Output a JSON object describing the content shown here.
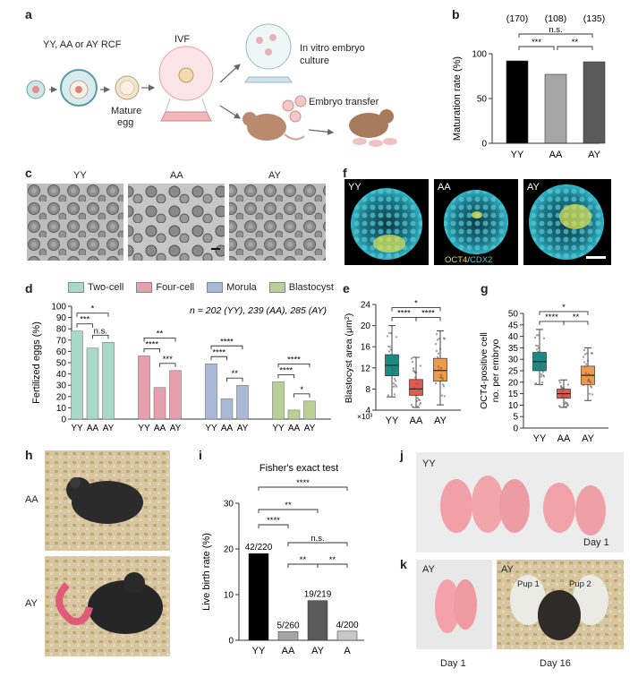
{
  "panels": {
    "a": "a",
    "b": "b",
    "c": "c",
    "d": "d",
    "e": "e",
    "f": "f",
    "g": "g",
    "h": "h",
    "i": "i",
    "j": "j",
    "k": "k"
  },
  "schematic": {
    "rcf": "YY, AA or AY RCF",
    "ivf": "IVF",
    "mature_egg_1": "Mature",
    "mature_egg_2": "egg",
    "in_vitro_1": "In vitro embryo",
    "in_vitro_2": "culture",
    "embryo_transfer": "Embryo transfer"
  },
  "micro_c": {
    "labels": [
      "YY",
      "AA",
      "AY"
    ]
  },
  "fluor_f": {
    "labels": [
      "YY",
      "AA",
      "AY"
    ],
    "stain1": "OCT4",
    "slash": "/",
    "stain2": "CDX2"
  },
  "mice_h": {
    "labels": [
      "AA",
      "AY"
    ]
  },
  "pups_j": {
    "label": "YY",
    "day": "Day 1"
  },
  "pups_k": {
    "label1": "AY",
    "label2": "AY",
    "pup1": "Pup 1",
    "pup2": "Pup 2",
    "day1": "Day 1",
    "day16": "Day 16"
  },
  "colors": {
    "yy": "#000000",
    "aa": "#a6a6a6",
    "ay": "#5a5a5a",
    "two_cell": "#a7d8c8",
    "four_cell": "#e6a0ad",
    "morula": "#aab8d8",
    "blastocyst": "#b8cf96",
    "box_yy": "#1a8a85",
    "box_aa": "#e05a50",
    "box_ay": "#ef9a4a"
  },
  "chart_data": [
    {
      "id": "b",
      "type": "bar",
      "categories": [
        "YY",
        "AA",
        "AY"
      ],
      "values": [
        92,
        77,
        91
      ],
      "counts": [
        "(170)",
        "(108)",
        "(135)"
      ],
      "ylabel": "Maturation rate (%)",
      "ylim": [
        0,
        100
      ],
      "yticks": [
        0,
        50,
        100
      ],
      "significance": [
        {
          "from": 0,
          "to": 2,
          "label": "n.s."
        },
        {
          "from": 0,
          "to": 1,
          "label": "***"
        },
        {
          "from": 1,
          "to": 2,
          "label": "**"
        }
      ]
    },
    {
      "id": "d",
      "type": "bar",
      "ylabel": "Fertilized eggs (%)",
      "ylim": [
        0,
        100
      ],
      "yticks": [
        0,
        10,
        20,
        30,
        40,
        50,
        60,
        70,
        80,
        90,
        100
      ],
      "note": "n = 202 (YY), 239 (AA), 285 (AY)",
      "categories": [
        "YY",
        "AA",
        "AY"
      ],
      "groups": [
        {
          "name": "Two-cell",
          "values": [
            78,
            63,
            68
          ],
          "sig": [
            {
              "from": 0,
              "to": 2,
              "label": "*"
            },
            {
              "from": 0,
              "to": 1,
              "label": "***"
            },
            {
              "from": 1,
              "to": 2,
              "label": "n.s."
            }
          ]
        },
        {
          "name": "Four-cell",
          "values": [
            56,
            28,
            43
          ],
          "sig": [
            {
              "from": 0,
              "to": 2,
              "label": "**"
            },
            {
              "from": 0,
              "to": 1,
              "label": "****"
            },
            {
              "from": 1,
              "to": 2,
              "label": "***"
            }
          ]
        },
        {
          "name": "Morula",
          "values": [
            49,
            18,
            30
          ],
          "sig": [
            {
              "from": 0,
              "to": 2,
              "label": "****"
            },
            {
              "from": 0,
              "to": 1,
              "label": "****"
            },
            {
              "from": 1,
              "to": 2,
              "label": "**"
            }
          ]
        },
        {
          "name": "Blastocyst",
          "values": [
            33,
            8,
            16
          ],
          "sig": [
            {
              "from": 0,
              "to": 2,
              "label": "****"
            },
            {
              "from": 0,
              "to": 1,
              "label": "****"
            },
            {
              "from": 1,
              "to": 2,
              "label": "*"
            }
          ]
        }
      ]
    },
    {
      "id": "e",
      "type": "box",
      "categories": [
        "YY",
        "AA",
        "AY"
      ],
      "ylabel": "Blastocyst area (μm²)",
      "ylabel_main": "Blastocyst area (μm",
      "ylabel_sup": "2",
      "ylabel_end": ")",
      "multiplier": "×10³",
      "ylim": [
        4,
        24
      ],
      "yticks": [
        4,
        8,
        12,
        16,
        20,
        24
      ],
      "boxes": [
        {
          "q1": 10.5,
          "median": 12.5,
          "q3": 14.5,
          "min": 6.5,
          "max": 20
        },
        {
          "q1": 6.8,
          "median": 8,
          "q3": 9.8,
          "min": 4.5,
          "max": 14
        },
        {
          "q1": 9.5,
          "median": 11.5,
          "q3": 13.8,
          "min": 5,
          "max": 19
        }
      ],
      "significance": [
        {
          "from": 0,
          "to": 2,
          "label": "*"
        },
        {
          "from": 0,
          "to": 1,
          "label": "****"
        },
        {
          "from": 1,
          "to": 2,
          "label": "****"
        }
      ]
    },
    {
      "id": "g",
      "type": "box",
      "categories": [
        "YY",
        "AA",
        "AY"
      ],
      "ylabel": "OCT4-positive cell no. per embryo",
      "ylabel_1": "OCT4-positive cell",
      "ylabel_2": "no. per embryo",
      "ylim": [
        0,
        50
      ],
      "yticks": [
        0,
        5,
        10,
        15,
        20,
        25,
        30,
        35,
        40,
        45,
        50
      ],
      "boxes": [
        {
          "q1": 25,
          "median": 29,
          "q3": 33,
          "min": 19,
          "max": 43
        },
        {
          "q1": 13,
          "median": 15,
          "q3": 17,
          "min": 9,
          "max": 21
        },
        {
          "q1": 19,
          "median": 23,
          "q3": 27,
          "min": 12,
          "max": 35
        }
      ],
      "significance": [
        {
          "from": 0,
          "to": 2,
          "label": "*"
        },
        {
          "from": 0,
          "to": 1,
          "label": "****"
        },
        {
          "from": 1,
          "to": 2,
          "label": "**"
        }
      ]
    },
    {
      "id": "i",
      "type": "bar",
      "title": "Fisher's exact test",
      "categories": [
        "YY",
        "AA",
        "AY",
        "A"
      ],
      "values": [
        19,
        1.9,
        8.7,
        2
      ],
      "data_labels": [
        "42/220",
        "5/260",
        "19/219",
        "4/200"
      ],
      "ylabel": "Live birth rate (%)",
      "ylim": [
        0,
        30
      ],
      "yticks": [
        0,
        10,
        20,
        30
      ],
      "significance": [
        {
          "from": 0,
          "to": 3,
          "label": "****"
        },
        {
          "from": 0,
          "to": 2,
          "label": "**"
        },
        {
          "from": 0,
          "to": 1,
          "label": "****"
        },
        {
          "from": 1,
          "to": 3,
          "label": "n.s."
        },
        {
          "from": 1,
          "to": 2,
          "label": "**"
        },
        {
          "from": 2,
          "to": 3,
          "label": "**"
        }
      ]
    }
  ]
}
